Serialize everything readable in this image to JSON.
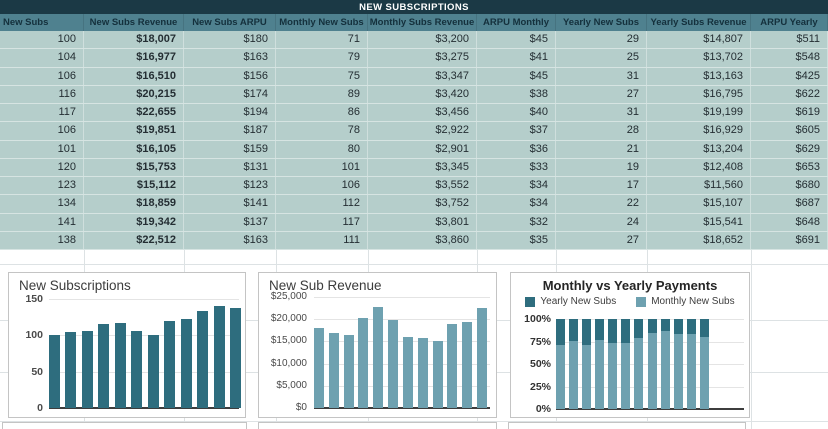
{
  "sheet": {
    "title": "NEW SUBSCRIPTIONS",
    "columns": [
      "New Subs",
      "New Subs Revenue",
      "New Subs ARPU",
      "Monthly New Subs",
      "Monthly Subs Revenue",
      "ARPU Monthly",
      "Yearly New Subs",
      "Yearly Subs Revenue",
      "ARPU Yearly"
    ],
    "rows": [
      [
        "100",
        "$18,007",
        "$180",
        "71",
        "$3,200",
        "$45",
        "29",
        "$14,807",
        "$511"
      ],
      [
        "104",
        "$16,977",
        "$163",
        "79",
        "$3,275",
        "$41",
        "25",
        "$13,702",
        "$548"
      ],
      [
        "106",
        "$16,510",
        "$156",
        "75",
        "$3,347",
        "$45",
        "31",
        "$13,163",
        "$425"
      ],
      [
        "116",
        "$20,215",
        "$174",
        "89",
        "$3,420",
        "$38",
        "27",
        "$16,795",
        "$622"
      ],
      [
        "117",
        "$22,655",
        "$194",
        "86",
        "$3,456",
        "$40",
        "31",
        "$19,199",
        "$619"
      ],
      [
        "106",
        "$19,851",
        "$187",
        "78",
        "$2,922",
        "$37",
        "28",
        "$16,929",
        "$605"
      ],
      [
        "101",
        "$16,105",
        "$159",
        "80",
        "$2,901",
        "$36",
        "21",
        "$13,204",
        "$629"
      ],
      [
        "120",
        "$15,753",
        "$131",
        "101",
        "$3,345",
        "$33",
        "19",
        "$12,408",
        "$653"
      ],
      [
        "123",
        "$15,112",
        "$123",
        "106",
        "$3,552",
        "$34",
        "17",
        "$11,560",
        "$680"
      ],
      [
        "134",
        "$18,859",
        "$141",
        "112",
        "$3,752",
        "$34",
        "22",
        "$15,107",
        "$687"
      ],
      [
        "141",
        "$19,342",
        "$137",
        "117",
        "$3,801",
        "$32",
        "24",
        "$15,541",
        "$648"
      ],
      [
        "138",
        "$22,512",
        "$163",
        "111",
        "$3,860",
        "$35",
        "27",
        "$18,652",
        "$691"
      ]
    ]
  },
  "colors": {
    "title_bar_bg": "#1b3945",
    "header_bg": "#4f818f",
    "body_bg": "#b5cecb",
    "bar_dark": "#2e6d7e",
    "bar_light": "#6ea1b0"
  },
  "chart_data": [
    {
      "type": "bar",
      "title": "New Subscriptions",
      "values": [
        100,
        104,
        106,
        116,
        117,
        106,
        101,
        120,
        123,
        134,
        141,
        138
      ],
      "ylim": [
        0,
        150
      ],
      "yticks": [
        "150",
        "100",
        "50",
        "0"
      ],
      "xlabel": "",
      "ylabel": "",
      "grid": true,
      "legend_position": "none"
    },
    {
      "type": "bar",
      "title": "New Sub Revenue",
      "values": [
        18007,
        16977,
        16510,
        20215,
        22655,
        19851,
        16105,
        15753,
        15112,
        18859,
        19342,
        22512
      ],
      "ylim": [
        0,
        25000
      ],
      "yticks": [
        "$25,000",
        "$20,000",
        "$15,000",
        "$10,000",
        "$5,000",
        "$0"
      ],
      "xlabel": "",
      "ylabel": "",
      "grid": true,
      "legend_position": "none"
    },
    {
      "type": "bar",
      "stacked_percent": true,
      "title": "Monthly vs Yearly Payments",
      "series": [
        {
          "name": "Yearly New Subs",
          "values": [
            29,
            25,
            31,
            27,
            31,
            28,
            21,
            19,
            17,
            22,
            24,
            27
          ]
        },
        {
          "name": "Monthly New Subs",
          "values": [
            71,
            79,
            75,
            89,
            86,
            78,
            80,
            101,
            106,
            112,
            117,
            111
          ]
        }
      ],
      "ylim": [
        0,
        100
      ],
      "yticks": [
        "100%",
        "75%",
        "50%",
        "25%",
        "0%"
      ],
      "grid": true,
      "legend_position": "top"
    }
  ]
}
